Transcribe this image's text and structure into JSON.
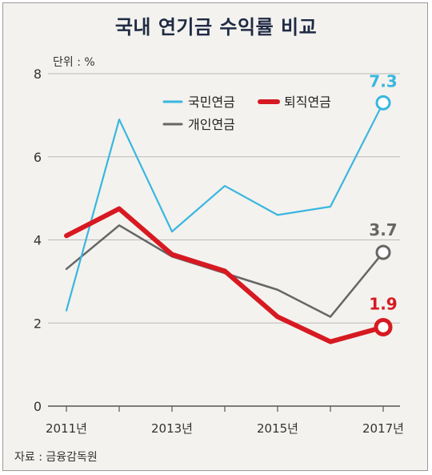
{
  "chart_data": {
    "type": "line",
    "title": "국내 연기금 수익률 비교",
    "unit_label": "단위 : %",
    "source": "자료 : 금융감독원",
    "x": [
      2011,
      2012,
      2013,
      2014,
      2015,
      2016,
      2017
    ],
    "x_tick_labels": [
      "2011년",
      "",
      "2013년",
      "",
      "2015년",
      "",
      "2017년"
    ],
    "y_ticks": [
      "0",
      "2",
      "4",
      "6",
      "8"
    ],
    "ylim": [
      0,
      8
    ],
    "grid": true,
    "legend_position": "top",
    "series": [
      {
        "name": "국민연금",
        "color": "#3ab6e0",
        "values": [
          2.3,
          6.9,
          4.2,
          5.3,
          4.6,
          4.8,
          7.3
        ],
        "end_label": "7.3"
      },
      {
        "name": "퇴직연금",
        "color": "#d71921",
        "values": [
          4.1,
          4.75,
          3.65,
          3.25,
          2.15,
          1.55,
          1.9
        ],
        "end_label": "1.9"
      },
      {
        "name": "개인연금",
        "color": "#666666",
        "values": [
          3.3,
          4.35,
          3.6,
          3.2,
          2.8,
          2.15,
          3.7
        ],
        "end_label": "3.7"
      }
    ]
  }
}
